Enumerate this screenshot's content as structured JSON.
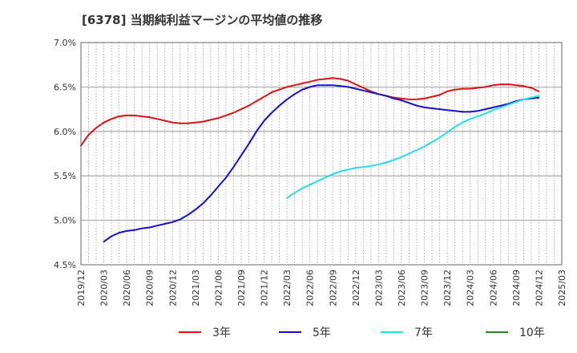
{
  "title": "[6378]  当期純利益マージンの平均値の推移",
  "chart_data": {
    "type": "line",
    "title": "[6378]  当期純利益マージンの平均値の推移",
    "ylim": [
      4.5,
      7.0
    ],
    "y_ticks": [
      4.5,
      5.0,
      5.5,
      6.0,
      6.5,
      7.0
    ],
    "y_tick_labels": [
      "4.5%",
      "5.0%",
      "5.5%",
      "6.0%",
      "6.5%",
      "7.0%"
    ],
    "x_range": [
      "2019/12",
      "2025/03"
    ],
    "x_tick_labels": [
      "2019/12",
      "2020/03",
      "2020/06",
      "2020/09",
      "2020/12",
      "2021/03",
      "2021/06",
      "2021/09",
      "2021/12",
      "2022/03",
      "2022/06",
      "2022/09",
      "2022/12",
      "2023/03",
      "2023/06",
      "2023/09",
      "2023/12",
      "2024/03",
      "2024/06",
      "2024/09",
      "2024/12",
      "2025/03"
    ],
    "grid": true,
    "legend_position": "bottom",
    "series": [
      {
        "name": "3年",
        "color": "#dd1111",
        "x": [
          "2019/12",
          "2020/01",
          "2020/02",
          "2020/03",
          "2020/04",
          "2020/05",
          "2020/06",
          "2020/07",
          "2020/08",
          "2020/09",
          "2020/10",
          "2020/11",
          "2020/12",
          "2021/01",
          "2021/02",
          "2021/03",
          "2021/04",
          "2021/05",
          "2021/06",
          "2021/07",
          "2021/08",
          "2021/09",
          "2021/10",
          "2021/11",
          "2021/12",
          "2022/01",
          "2022/02",
          "2022/03",
          "2022/04",
          "2022/05",
          "2022/06",
          "2022/07",
          "2022/08",
          "2022/09",
          "2022/10",
          "2022/11",
          "2022/12",
          "2023/01",
          "2023/02",
          "2023/03",
          "2023/04",
          "2023/05",
          "2023/06",
          "2023/07",
          "2023/08",
          "2023/09",
          "2023/10",
          "2023/11",
          "2023/12",
          "2024/01",
          "2024/02",
          "2024/03",
          "2024/04",
          "2024/05",
          "2024/06",
          "2024/07",
          "2024/08",
          "2024/09",
          "2024/10",
          "2024/11",
          "2024/12"
        ],
        "values": [
          5.84,
          5.96,
          6.04,
          6.1,
          6.14,
          6.17,
          6.18,
          6.18,
          6.17,
          6.16,
          6.14,
          6.12,
          6.1,
          6.09,
          6.09,
          6.1,
          6.11,
          6.13,
          6.15,
          6.18,
          6.21,
          6.25,
          6.29,
          6.34,
          6.39,
          6.44,
          6.47,
          6.5,
          6.52,
          6.54,
          6.56,
          6.58,
          6.59,
          6.6,
          6.59,
          6.57,
          6.53,
          6.49,
          6.45,
          6.42,
          6.4,
          6.38,
          6.37,
          6.36,
          6.36,
          6.37,
          6.39,
          6.41,
          6.45,
          6.47,
          6.48,
          6.48,
          6.49,
          6.5,
          6.52,
          6.53,
          6.53,
          6.52,
          6.51,
          6.49,
          6.45
        ]
      },
      {
        "name": "5年",
        "color": "#1111cc",
        "x": [
          "2020/03",
          "2020/04",
          "2020/05",
          "2020/06",
          "2020/07",
          "2020/08",
          "2020/09",
          "2020/10",
          "2020/11",
          "2020/12",
          "2021/01",
          "2021/02",
          "2021/03",
          "2021/04",
          "2021/05",
          "2021/06",
          "2021/07",
          "2021/08",
          "2021/09",
          "2021/10",
          "2021/11",
          "2021/12",
          "2022/01",
          "2022/02",
          "2022/03",
          "2022/04",
          "2022/05",
          "2022/06",
          "2022/07",
          "2022/08",
          "2022/09",
          "2022/10",
          "2022/11",
          "2022/12",
          "2023/01",
          "2023/02",
          "2023/03",
          "2023/04",
          "2023/05",
          "2023/06",
          "2023/07",
          "2023/08",
          "2023/09",
          "2023/10",
          "2023/11",
          "2023/12",
          "2024/01",
          "2024/02",
          "2024/03",
          "2024/04",
          "2024/05",
          "2024/06",
          "2024/07",
          "2024/08",
          "2024/09",
          "2024/10",
          "2024/11",
          "2024/12"
        ],
        "values": [
          4.76,
          4.82,
          4.86,
          4.88,
          4.89,
          4.91,
          4.92,
          4.94,
          4.96,
          4.98,
          5.01,
          5.06,
          5.12,
          5.19,
          5.28,
          5.38,
          5.48,
          5.6,
          5.73,
          5.86,
          6.0,
          6.12,
          6.21,
          6.29,
          6.36,
          6.42,
          6.47,
          6.5,
          6.52,
          6.52,
          6.52,
          6.51,
          6.5,
          6.48,
          6.46,
          6.44,
          6.42,
          6.4,
          6.37,
          6.35,
          6.32,
          6.29,
          6.27,
          6.26,
          6.25,
          6.24,
          6.23,
          6.22,
          6.22,
          6.23,
          6.25,
          6.27,
          6.29,
          6.31,
          6.34,
          6.36,
          6.37,
          6.38
        ]
      },
      {
        "name": "7年",
        "color": "#22ddee",
        "x": [
          "2022/03",
          "2022/04",
          "2022/05",
          "2022/06",
          "2022/07",
          "2022/08",
          "2022/09",
          "2022/10",
          "2022/11",
          "2022/12",
          "2023/01",
          "2023/02",
          "2023/03",
          "2023/04",
          "2023/05",
          "2023/06",
          "2023/07",
          "2023/08",
          "2023/09",
          "2023/10",
          "2023/11",
          "2023/12",
          "2024/01",
          "2024/02",
          "2024/03",
          "2024/04",
          "2024/05",
          "2024/06",
          "2024/07",
          "2024/08",
          "2024/09",
          "2024/10",
          "2024/11",
          "2024/12"
        ],
        "values": [
          5.25,
          5.31,
          5.36,
          5.4,
          5.44,
          5.48,
          5.52,
          5.55,
          5.57,
          5.59,
          5.6,
          5.61,
          5.63,
          5.65,
          5.68,
          5.71,
          5.75,
          5.79,
          5.83,
          5.88,
          5.93,
          5.99,
          6.05,
          6.1,
          6.14,
          6.17,
          6.2,
          6.24,
          6.27,
          6.3,
          6.33,
          6.36,
          6.38,
          6.4
        ]
      },
      {
        "name": "10年",
        "color": "#228822",
        "x": [],
        "values": []
      }
    ]
  }
}
